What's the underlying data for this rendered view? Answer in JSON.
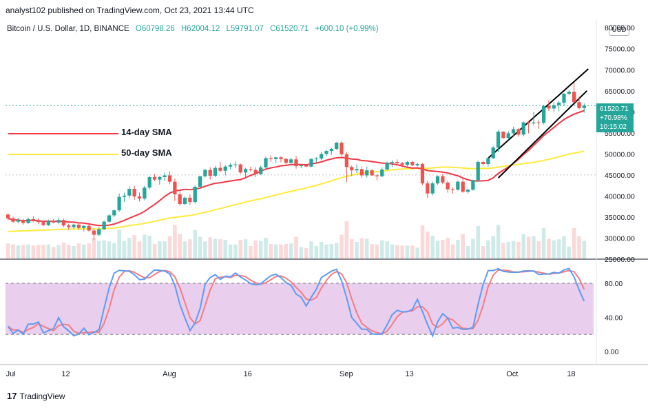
{
  "header": {
    "publisher": "analyst102 published on TradingView.com, Oct 23, 2021 13:44 UTC"
  },
  "symbol": {
    "name": "Bitcoin / U.S. Dollar, 1D, BINANCE",
    "open": "O60798.26",
    "high": "H62004.12",
    "low": "L59791.07",
    "close": "C61520.71",
    "change": "+600.10 (+0.99%)"
  },
  "currency_badge": "USD",
  "price_tag": {
    "price": "61520.71",
    "pct": "+70.98%",
    "countdown": "10:15:02"
  },
  "legend": {
    "sma14": "14-day SMA",
    "sma50": "50-day SMA"
  },
  "footer": {
    "brand": "TradingView",
    "logo_text": "17"
  },
  "colors": {
    "up": "#26a69a",
    "down": "#ef5350",
    "sma14": "#f23645",
    "sma50": "#ffeb3b",
    "stoch_k": "#5b9cf6",
    "stoch_d": "#f77c80",
    "stoch_band": "#e1bee7"
  },
  "chart_data": [
    {
      "type": "candlestick",
      "title": "Bitcoin / U.S. Dollar, 1D, BINANCE",
      "y_ticks": [
        "80000.00",
        "75000.00",
        "70000.00",
        "65000.00",
        "60000.00",
        "55000.00",
        "50000.00",
        "45000.00",
        "40000.00",
        "35000.00",
        "30000.00",
        "25000.00"
      ],
      "ylim": [
        25000,
        82000
      ],
      "x_ticks": [
        "Jul",
        "12",
        "Aug",
        "16",
        "Sep",
        "13",
        "Oct",
        "18"
      ],
      "grid": false,
      "candles": [
        [
          35600,
          35900,
          34200,
          34700
        ],
        [
          34700,
          35100,
          33600,
          33900
        ],
        [
          33900,
          34800,
          33500,
          34300
        ],
        [
          34300,
          34600,
          33200,
          33600
        ],
        [
          33600,
          34900,
          33400,
          34500
        ],
        [
          34500,
          35200,
          33900,
          34100
        ],
        [
          34100,
          34700,
          33300,
          33800
        ],
        [
          33800,
          34200,
          32800,
          33100
        ],
        [
          33100,
          34400,
          32900,
          34100
        ],
        [
          34100,
          34500,
          33500,
          33700
        ],
        [
          33700,
          34800,
          33400,
          34300
        ],
        [
          34300,
          34600,
          32700,
          33000
        ],
        [
          33000,
          33400,
          32000,
          32600
        ],
        [
          32600,
          33400,
          32200,
          33200
        ],
        [
          33200,
          33600,
          31900,
          32400
        ],
        [
          32400,
          33100,
          31600,
          32900
        ],
        [
          32900,
          33200,
          31500,
          31800
        ],
        [
          31800,
          32300,
          29500,
          30800
        ],
        [
          30800,
          32600,
          30400,
          32100
        ],
        [
          32100,
          34200,
          31900,
          33900
        ],
        [
          33900,
          35700,
          33600,
          35400
        ],
        [
          35400,
          36800,
          35000,
          36600
        ],
        [
          36600,
          40600,
          36300,
          39800
        ],
        [
          39800,
          40800,
          38600,
          40100
        ],
        [
          40100,
          42300,
          39500,
          41700
        ],
        [
          41700,
          42400,
          39100,
          39900
        ],
        [
          39900,
          40800,
          38700,
          39400
        ],
        [
          39400,
          42400,
          39000,
          42000
        ],
        [
          42000,
          44800,
          41600,
          44500
        ],
        [
          44500,
          45200,
          43600,
          43900
        ],
        [
          43900,
          44800,
          42700,
          44500
        ],
        [
          44500,
          45600,
          43500,
          44900
        ],
        [
          44900,
          45900,
          42800,
          43400
        ],
        [
          43400,
          44100,
          38800,
          40400
        ],
        [
          40400,
          41200,
          37700,
          38100
        ],
        [
          38100,
          39900,
          37800,
          39600
        ],
        [
          39600,
          40400,
          37900,
          38600
        ],
        [
          38600,
          42500,
          38200,
          42200
        ],
        [
          42200,
          44800,
          41800,
          44700
        ],
        [
          44700,
          46500,
          44400,
          46200
        ],
        [
          46200,
          46800,
          43900,
          44800
        ],
        [
          44800,
          47100,
          44500,
          46700
        ],
        [
          46700,
          48100,
          45600,
          46000
        ],
        [
          46000,
          47300,
          44900,
          47000
        ],
        [
          47000,
          47800,
          46300,
          47400
        ],
        [
          47400,
          48200,
          46700,
          47500
        ],
        [
          47500,
          47700,
          45300,
          45600
        ],
        [
          45600,
          46700,
          44200,
          46400
        ],
        [
          46400,
          47000,
          45800,
          46200
        ],
        [
          46200,
          46800,
          44500,
          45200
        ],
        [
          45200,
          47200,
          45000,
          46800
        ],
        [
          46800,
          49300,
          46500,
          49000
        ],
        [
          49000,
          49700,
          48100,
          48800
        ],
        [
          48800,
          49300,
          47800,
          49200
        ],
        [
          49200,
          49500,
          48000,
          48800
        ],
        [
          48800,
          49100,
          47500,
          47900
        ],
        [
          47900,
          49100,
          47400,
          48700
        ],
        [
          48700,
          49500,
          46500,
          47100
        ],
        [
          47100,
          47600,
          46600,
          47300
        ],
        [
          47300,
          47600,
          46800,
          47000
        ],
        [
          47000,
          48900,
          46800,
          48800
        ],
        [
          48800,
          49200,
          48000,
          48900
        ],
        [
          48900,
          50500,
          48500,
          50000
        ],
        [
          50000,
          51000,
          49500,
          50700
        ],
        [
          50700,
          51400,
          49800,
          51200
        ],
        [
          51200,
          52800,
          51000,
          52700
        ],
        [
          52700,
          52900,
          49500,
          49900
        ],
        [
          49900,
          50500,
          43300,
          46900
        ],
        [
          46900,
          47200,
          44700,
          46100
        ],
        [
          46100,
          47500,
          45500,
          46400
        ],
        [
          46400,
          47000,
          44300,
          44900
        ],
        [
          44900,
          47000,
          44400,
          46100
        ],
        [
          46100,
          46400,
          44800,
          44900
        ],
        [
          44900,
          45200,
          43700,
          44700
        ],
        [
          44700,
          46800,
          44500,
          46300
        ],
        [
          46300,
          48200,
          46100,
          47900
        ],
        [
          47900,
          48500,
          47000,
          48100
        ],
        [
          48100,
          48700,
          47300,
          47800
        ],
        [
          47800,
          48100,
          46800,
          47400
        ],
        [
          47400,
          48300,
          47000,
          48100
        ],
        [
          48100,
          48400,
          47100,
          47300
        ],
        [
          47300,
          47900,
          47000,
          47600
        ],
        [
          47600,
          47800,
          42600,
          43000
        ],
        [
          43000,
          43600,
          39600,
          40600
        ],
        [
          40600,
          43400,
          40200,
          43000
        ],
        [
          43000,
          44900,
          42700,
          44700
        ],
        [
          44700,
          45200,
          42800,
          43200
        ],
        [
          43200,
          43600,
          40800,
          41600
        ],
        [
          41600,
          42100,
          40600,
          41500
        ],
        [
          41500,
          43700,
          41300,
          43400
        ],
        [
          43400,
          44300,
          40800,
          41000
        ],
        [
          41000,
          41800,
          40600,
          41500
        ],
        [
          41500,
          43900,
          41300,
          43800
        ],
        [
          43800,
          48400,
          43300,
          48100
        ],
        [
          48100,
          48400,
          47200,
          47600
        ],
        [
          47600,
          49300,
          47000,
          49000
        ],
        [
          49000,
          51900,
          48800,
          51500
        ],
        [
          51500,
          55700,
          50400,
          55300
        ],
        [
          55300,
          55400,
          53600,
          53800
        ],
        [
          53800,
          55400,
          53400,
          54900
        ],
        [
          54900,
          56500,
          54300,
          55900
        ],
        [
          55900,
          56100,
          54100,
          54600
        ],
        [
          54600,
          57700,
          54200,
          57500
        ],
        [
          57500,
          57900,
          54900,
          57300
        ],
        [
          57300,
          59900,
          56800,
          57500
        ],
        [
          57500,
          58100,
          56000,
          57400
        ],
        [
          57400,
          61700,
          57000,
          61400
        ],
        [
          61400,
          62800,
          60200,
          60800
        ],
        [
          60800,
          62300,
          60000,
          61600
        ],
        [
          61600,
          62600,
          60100,
          62200
        ],
        [
          62200,
          64500,
          61400,
          64300
        ],
        [
          64300,
          65100,
          64000,
          64800
        ],
        [
          64800,
          66900,
          62200,
          62300
        ],
        [
          62300,
          63700,
          60600,
          60900
        ],
        [
          60900,
          62000,
          59800,
          61500
        ]
      ],
      "sma14_label": "14-day SMA",
      "sma50_label": "50-day SMA",
      "stochastic": {
        "y_ticks": [
          "80.00",
          "40.00",
          "0.00"
        ],
        "ylim": [
          -8,
          105
        ],
        "levels": [
          20,
          80
        ]
      }
    }
  ]
}
